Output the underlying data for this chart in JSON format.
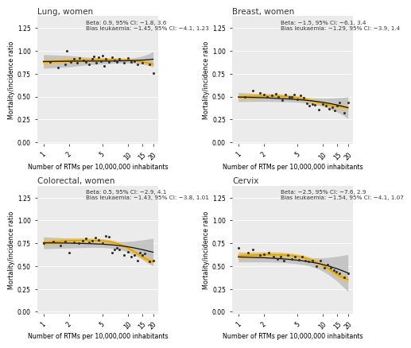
{
  "panels": [
    {
      "title": "Lung, women",
      "annotation": "Beta: 0.9, 95% CI: −1.8, 3.6\nBias leukaemia: −1.45, 95% CI: −4.1, 1.23",
      "ylim": [
        -0.02,
        1.38
      ],
      "yticks": [
        0.0,
        0.25,
        0.5,
        0.75,
        1.0,
        1.25
      ],
      "scatter_x": [
        1.2,
        1.5,
        1.8,
        1.9,
        2.1,
        2.3,
        2.5,
        2.7,
        3.0,
        3.2,
        3.5,
        3.8,
        4.0,
        4.2,
        4.5,
        4.8,
        5.0,
        5.2,
        5.5,
        6.0,
        6.5,
        7.0,
        7.5,
        8.0,
        9.0,
        10.0,
        11.0,
        12.0,
        13.0,
        15.0,
        18.0,
        20.0
      ],
      "scatter_y": [
        0.88,
        0.82,
        0.85,
        1.0,
        0.88,
        0.91,
        0.87,
        0.92,
        0.9,
        0.88,
        0.85,
        0.91,
        0.94,
        0.87,
        0.93,
        0.89,
        0.95,
        0.84,
        0.91,
        0.88,
        0.93,
        0.9,
        0.88,
        0.91,
        0.87,
        0.92,
        0.88,
        0.89,
        0.85,
        0.87,
        0.85,
        0.76
      ],
      "black_line_x": [
        1.0,
        2.0,
        3.0,
        4.0,
        5.0,
        6.0,
        7.0,
        8.0,
        9.0,
        10.0,
        12.0,
        15.0,
        18.0,
        20.0
      ],
      "black_line_y": [
        0.885,
        0.887,
        0.889,
        0.889,
        0.889,
        0.889,
        0.89,
        0.891,
        0.892,
        0.893,
        0.895,
        0.9,
        0.905,
        0.91
      ],
      "gray_ci_upper": [
        0.96,
        0.95,
        0.935,
        0.925,
        0.92,
        0.915,
        0.914,
        0.914,
        0.915,
        0.918,
        0.926,
        0.945,
        0.97,
        0.995
      ],
      "gray_ci_lower": [
        0.81,
        0.825,
        0.843,
        0.853,
        0.858,
        0.863,
        0.866,
        0.868,
        0.869,
        0.868,
        0.864,
        0.855,
        0.84,
        0.825
      ],
      "orange_line_x": [
        1.0,
        1.5,
        2.0,
        3.0,
        4.0,
        5.0,
        6.0,
        7.0,
        8.0,
        9.0,
        10.0,
        12.0,
        14.0,
        16.0,
        18.0,
        20.0
      ],
      "orange_line_y": [
        0.875,
        0.888,
        0.895,
        0.9,
        0.902,
        0.905,
        0.907,
        0.908,
        0.908,
        0.906,
        0.903,
        0.895,
        0.886,
        0.876,
        0.866,
        0.855
      ],
      "orange_ci_upper": [
        0.91,
        0.918,
        0.922,
        0.924,
        0.924,
        0.924,
        0.924,
        0.923,
        0.921,
        0.919,
        0.916,
        0.909,
        0.902,
        0.895,
        0.888,
        0.88
      ],
      "orange_ci_lower": [
        0.84,
        0.858,
        0.868,
        0.876,
        0.88,
        0.886,
        0.89,
        0.893,
        0.895,
        0.893,
        0.89,
        0.881,
        0.87,
        0.857,
        0.844,
        0.83
      ]
    },
    {
      "title": "Breast, women",
      "annotation": "Beta: −1.5, 95% CI: −6.1, 3.4\nBias leukaemia: −1.29, 95% CI: −3.9, 1.4",
      "ylim": [
        -0.02,
        1.38
      ],
      "yticks": [
        0.0,
        0.25,
        0.5,
        0.75,
        1.0,
        1.25
      ],
      "scatter_x": [
        1.2,
        1.5,
        1.8,
        2.0,
        2.2,
        2.5,
        2.8,
        3.0,
        3.3,
        3.6,
        4.0,
        4.3,
        4.6,
        5.0,
        5.5,
        6.0,
        6.5,
        7.0,
        7.5,
        8.0,
        9.0,
        10.0,
        11.0,
        12.0,
        13.0,
        14.0,
        15.0,
        16.0,
        18.0,
        20.0
      ],
      "scatter_y": [
        0.5,
        0.57,
        0.54,
        0.52,
        0.5,
        0.51,
        0.53,
        0.5,
        0.46,
        0.52,
        0.5,
        0.5,
        0.52,
        0.47,
        0.51,
        0.49,
        0.43,
        0.4,
        0.42,
        0.41,
        0.36,
        0.42,
        0.4,
        0.37,
        0.38,
        0.35,
        0.4,
        0.44,
        0.32,
        0.44
      ],
      "black_line_x": [
        1.0,
        2.0,
        3.0,
        4.0,
        5.0,
        6.0,
        7.0,
        8.0,
        9.0,
        10.0,
        12.0,
        15.0,
        18.0,
        20.0
      ],
      "black_line_y": [
        0.495,
        0.488,
        0.48,
        0.474,
        0.468,
        0.462,
        0.456,
        0.45,
        0.444,
        0.438,
        0.426,
        0.408,
        0.39,
        0.378
      ],
      "gray_ci_upper": [
        0.545,
        0.528,
        0.515,
        0.505,
        0.498,
        0.492,
        0.488,
        0.485,
        0.483,
        0.482,
        0.483,
        0.487,
        0.492,
        0.497
      ],
      "gray_ci_lower": [
        0.445,
        0.448,
        0.445,
        0.443,
        0.438,
        0.432,
        0.424,
        0.415,
        0.405,
        0.394,
        0.369,
        0.329,
        0.288,
        0.259
      ],
      "orange_line_x": [
        1.0,
        1.5,
        2.0,
        3.0,
        4.0,
        5.0,
        6.0,
        7.0,
        8.0,
        9.0,
        10.0,
        12.0,
        14.0,
        16.0,
        18.0,
        20.0
      ],
      "orange_line_y": [
        0.498,
        0.503,
        0.508,
        0.506,
        0.498,
        0.487,
        0.474,
        0.46,
        0.446,
        0.434,
        0.424,
        0.408,
        0.397,
        0.39,
        0.385,
        0.382
      ],
      "orange_ci_upper": [
        0.528,
        0.531,
        0.534,
        0.53,
        0.521,
        0.51,
        0.497,
        0.483,
        0.47,
        0.458,
        0.448,
        0.432,
        0.421,
        0.414,
        0.41,
        0.408
      ],
      "orange_ci_lower": [
        0.468,
        0.475,
        0.482,
        0.482,
        0.475,
        0.464,
        0.451,
        0.437,
        0.422,
        0.41,
        0.4,
        0.384,
        0.373,
        0.366,
        0.36,
        0.356
      ]
    },
    {
      "title": "Colorectal, women",
      "annotation": "Beta: 0.5, 95% CI: −2.9, 4.1\nBias leukaemia: −1.43, 95% CI: −3.8, 1.01",
      "ylim": [
        -0.02,
        1.38
      ],
      "yticks": [
        0.0,
        0.25,
        0.5,
        0.75,
        1.0,
        1.25
      ],
      "scatter_x": [
        1.0,
        1.3,
        1.6,
        1.8,
        2.0,
        2.3,
        2.6,
        2.9,
        3.2,
        3.5,
        3.8,
        4.1,
        4.5,
        5.0,
        5.5,
        6.0,
        6.5,
        7.0,
        7.5,
        8.0,
        9.0,
        10.0,
        11.0,
        12.0,
        13.0,
        14.0,
        15.0,
        16.0,
        18.0,
        20.0
      ],
      "scatter_y": [
        0.75,
        0.77,
        0.73,
        0.77,
        0.65,
        0.76,
        0.75,
        0.78,
        0.8,
        0.76,
        0.78,
        0.81,
        0.79,
        0.75,
        0.83,
        0.82,
        0.65,
        0.68,
        0.7,
        0.68,
        0.62,
        0.66,
        0.6,
        0.62,
        0.56,
        0.65,
        0.62,
        0.64,
        0.55,
        0.56
      ],
      "black_line_x": [
        1.0,
        2.0,
        3.0,
        4.0,
        5.0,
        6.0,
        7.0,
        8.0,
        9.0,
        10.0,
        12.0,
        15.0,
        18.0,
        20.0
      ],
      "black_line_y": [
        0.755,
        0.752,
        0.748,
        0.744,
        0.74,
        0.735,
        0.73,
        0.724,
        0.718,
        0.712,
        0.699,
        0.68,
        0.662,
        0.652
      ],
      "gray_ci_upper": [
        0.82,
        0.806,
        0.793,
        0.783,
        0.776,
        0.771,
        0.768,
        0.767,
        0.768,
        0.77,
        0.776,
        0.787,
        0.798,
        0.804
      ],
      "gray_ci_lower": [
        0.69,
        0.698,
        0.703,
        0.705,
        0.704,
        0.699,
        0.692,
        0.681,
        0.668,
        0.654,
        0.622,
        0.573,
        0.526,
        0.5
      ],
      "orange_line_x": [
        1.0,
        1.5,
        2.0,
        3.0,
        4.0,
        5.0,
        6.0,
        7.0,
        8.0,
        9.0,
        10.0,
        12.0,
        14.0,
        16.0,
        18.0,
        20.0
      ],
      "orange_line_y": [
        0.76,
        0.77,
        0.778,
        0.782,
        0.781,
        0.776,
        0.768,
        0.755,
        0.739,
        0.72,
        0.7,
        0.658,
        0.618,
        0.585,
        0.562,
        0.548
      ],
      "orange_ci_upper": [
        0.795,
        0.803,
        0.808,
        0.809,
        0.806,
        0.799,
        0.79,
        0.777,
        0.76,
        0.742,
        0.722,
        0.681,
        0.644,
        0.614,
        0.594,
        0.582
      ],
      "orange_ci_lower": [
        0.725,
        0.737,
        0.748,
        0.755,
        0.756,
        0.753,
        0.746,
        0.733,
        0.718,
        0.698,
        0.678,
        0.635,
        0.592,
        0.556,
        0.53,
        0.514
      ]
    },
    {
      "title": "Cervix",
      "annotation": "Beta: −2.5, 95% CI: −7.6, 2.9\nBias leukaemia: −1.54, 95% CI: −4.1, 1.07",
      "ylim": [
        -0.02,
        1.38
      ],
      "yticks": [
        0.0,
        0.25,
        0.5,
        0.75,
        1.0,
        1.25
      ],
      "scatter_x": [
        1.0,
        1.3,
        1.5,
        1.8,
        2.0,
        2.3,
        2.6,
        2.9,
        3.2,
        3.5,
        3.9,
        4.3,
        4.7,
        5.2,
        5.7,
        6.2,
        6.8,
        7.5,
        8.5,
        9.5,
        10.5,
        11.5,
        12.5,
        13.5,
        14.5,
        16.0,
        18.0,
        20.0
      ],
      "scatter_y": [
        0.7,
        0.65,
        0.68,
        0.62,
        0.63,
        0.65,
        0.6,
        0.58,
        0.6,
        0.56,
        0.62,
        0.58,
        0.6,
        0.57,
        0.6,
        0.56,
        0.55,
        0.56,
        0.5,
        0.56,
        0.48,
        0.52,
        0.48,
        0.46,
        0.44,
        0.42,
        0.38,
        0.42
      ],
      "black_line_x": [
        1.0,
        2.0,
        3.0,
        4.0,
        5.0,
        6.0,
        7.0,
        8.0,
        9.0,
        10.0,
        12.0,
        15.0,
        18.0,
        20.0
      ],
      "black_line_y": [
        0.6,
        0.592,
        0.583,
        0.574,
        0.565,
        0.556,
        0.547,
        0.537,
        0.528,
        0.518,
        0.499,
        0.47,
        0.442,
        0.425
      ],
      "gray_ci_upper": [
        0.655,
        0.638,
        0.624,
        0.613,
        0.604,
        0.597,
        0.592,
        0.59,
        0.589,
        0.59,
        0.596,
        0.608,
        0.62,
        0.628
      ],
      "gray_ci_lower": [
        0.545,
        0.546,
        0.542,
        0.535,
        0.526,
        0.515,
        0.502,
        0.484,
        0.467,
        0.446,
        0.402,
        0.332,
        0.264,
        0.222
      ],
      "orange_line_x": [
        1.0,
        1.5,
        2.0,
        3.0,
        4.0,
        5.0,
        6.0,
        7.0,
        8.0,
        9.0,
        10.0,
        12.0,
        14.0,
        16.0,
        18.0,
        20.0
      ],
      "orange_line_y": [
        0.612,
        0.62,
        0.624,
        0.624,
        0.618,
        0.607,
        0.592,
        0.574,
        0.554,
        0.532,
        0.51,
        0.466,
        0.425,
        0.392,
        0.368,
        0.352
      ],
      "orange_ci_upper": [
        0.648,
        0.654,
        0.656,
        0.653,
        0.645,
        0.633,
        0.617,
        0.599,
        0.579,
        0.558,
        0.536,
        0.493,
        0.454,
        0.424,
        0.402,
        0.389
      ],
      "orange_ci_lower": [
        0.576,
        0.586,
        0.592,
        0.595,
        0.591,
        0.581,
        0.567,
        0.549,
        0.529,
        0.506,
        0.484,
        0.439,
        0.396,
        0.36,
        0.334,
        0.315
      ]
    }
  ],
  "xlabel": "Number of RTMs per 10,000,000 inhabitants",
  "ylabel": "Mortality/incidence ratio",
  "xtick_positions": [
    1.0,
    2.0,
    5.0,
    10.0,
    15.0,
    20.0
  ],
  "xticklabels": [
    "1",
    "2",
    "5",
    "10",
    "15",
    "20"
  ],
  "xlim": [
    0.85,
    23
  ],
  "bg_color": "#ebebeb",
  "gray_band_color": "#b8b8b8",
  "orange_line_color": "#DAA000",
  "orange_band_color": "#E8C060",
  "black_line_color": "#111111",
  "scatter_color": "#333333",
  "annotation_fontsize": 5.2,
  "title_fontsize": 7.5,
  "axis_label_fontsize": 5.8,
  "tick_fontsize": 5.5,
  "grid_color": "#ffffff",
  "grid_lw": 0.6
}
